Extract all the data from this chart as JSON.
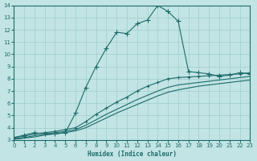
{
  "xlabel": "Humidex (Indice chaleur)",
  "xlim": [
    0,
    23
  ],
  "ylim": [
    3,
    14
  ],
  "xticks": [
    0,
    1,
    2,
    3,
    4,
    5,
    6,
    7,
    8,
    9,
    10,
    11,
    12,
    13,
    14,
    15,
    16,
    17,
    18,
    19,
    20,
    21,
    22,
    23
  ],
  "yticks": [
    3,
    4,
    5,
    6,
    7,
    8,
    9,
    10,
    11,
    12,
    13,
    14
  ],
  "background_color": "#c2e4e4",
  "grid_color": "#9fcece",
  "line_color": "#1e6b6b",
  "lines": [
    {
      "x": [
        0,
        1,
        2,
        3,
        4,
        5,
        6,
        7,
        8,
        9,
        10,
        11,
        12,
        13,
        14,
        15,
        16,
        17,
        18,
        19,
        20,
        21,
        22,
        23
      ],
      "y": [
        3.2,
        3.4,
        3.6,
        3.5,
        3.5,
        3.6,
        5.2,
        7.3,
        9.0,
        10.5,
        11.8,
        11.7,
        12.5,
        12.8,
        14.0,
        13.5,
        12.7,
        8.6,
        8.5,
        8.4,
        8.2,
        8.3,
        8.5,
        8.4
      ],
      "marker": "+",
      "markersize": 4,
      "linewidth": 0.8
    },
    {
      "x": [
        0,
        1,
        2,
        3,
        4,
        5,
        6,
        7,
        8,
        9,
        10,
        11,
        12,
        13,
        14,
        15,
        16,
        17,
        18,
        19,
        20,
        21,
        22,
        23
      ],
      "y": [
        3.2,
        3.3,
        3.5,
        3.6,
        3.7,
        3.85,
        4.0,
        4.5,
        5.1,
        5.6,
        6.1,
        6.5,
        7.0,
        7.4,
        7.7,
        8.0,
        8.1,
        8.15,
        8.2,
        8.25,
        8.3,
        8.35,
        8.4,
        8.5
      ],
      "marker": "+",
      "markersize": 3,
      "linewidth": 0.8
    },
    {
      "x": [
        0,
        1,
        2,
        3,
        4,
        5,
        6,
        7,
        8,
        9,
        10,
        11,
        12,
        13,
        14,
        15,
        16,
        17,
        18,
        19,
        20,
        21,
        22,
        23
      ],
      "y": [
        3.1,
        3.2,
        3.35,
        3.5,
        3.6,
        3.7,
        3.85,
        4.2,
        4.65,
        5.1,
        5.5,
        5.9,
        6.3,
        6.65,
        7.0,
        7.3,
        7.5,
        7.6,
        7.7,
        7.8,
        7.9,
        8.0,
        8.1,
        8.2
      ],
      "marker": null,
      "markersize": 0,
      "linewidth": 0.8
    },
    {
      "x": [
        0,
        1,
        2,
        3,
        4,
        5,
        6,
        7,
        8,
        9,
        10,
        11,
        12,
        13,
        14,
        15,
        16,
        17,
        18,
        19,
        20,
        21,
        22,
        23
      ],
      "y": [
        3.05,
        3.15,
        3.25,
        3.4,
        3.5,
        3.6,
        3.75,
        4.0,
        4.4,
        4.8,
        5.2,
        5.55,
        5.9,
        6.25,
        6.6,
        6.9,
        7.1,
        7.25,
        7.4,
        7.5,
        7.6,
        7.7,
        7.8,
        7.9
      ],
      "marker": null,
      "markersize": 0,
      "linewidth": 0.8
    }
  ]
}
